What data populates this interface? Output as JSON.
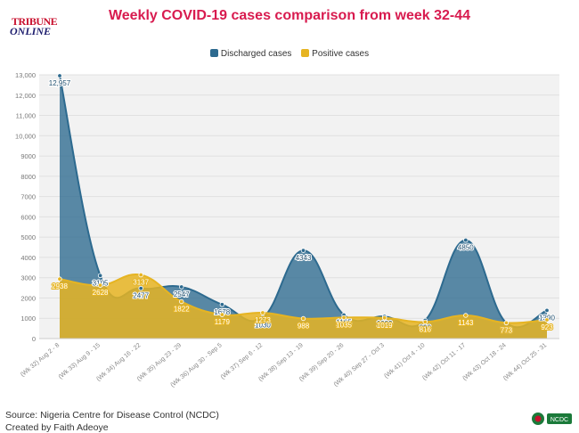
{
  "header": {
    "title": "Weekly COVID-19 cases comparison from week 32-44",
    "logo_text_top": "TRIBUNE",
    "logo_text_bottom": "ONLINE"
  },
  "footer": {
    "source": "Source: Nigeria Centre for Disease Control (NCDC)",
    "credit": "Created by Faith Adeoye",
    "badge": "NCDC"
  },
  "colors": {
    "discharged": "#2d6a8f",
    "positive": "#e6b422",
    "title": "#d81b4f"
  },
  "chart_data": {
    "type": "area",
    "title": "Weekly COVID-19 cases comparison from week 32-44",
    "xlabel": "",
    "ylabel": "",
    "ylim": [
      0,
      13000
    ],
    "yticks": [
      "0",
      "1000",
      "2000",
      "3000",
      "4000",
      "5000",
      "6000",
      "7000",
      "8000",
      "9000",
      "10,000",
      "11,000",
      "12,000",
      "13,000"
    ],
    "grid": true,
    "legend": "top-center",
    "categories": [
      "(Wk 32) Aug 2 - 8",
      "(Wk 33) Aug 9 - 15",
      "(Wk 34) Aug 16 - 22",
      "(Wk 35) Aug 23 - 29",
      "(Wk 36) Aug 30 - Sep 5",
      "(Wk 37) Sep 6 - 12",
      "(Wk 38) Sep 13 - 19",
      "(Wk 39) Sep 20 - 26",
      "(Wk 40) Sep 27 - Oct 3",
      "(Wk 41) Oct 4 - 10",
      "(Wk 42) Oct 11 - 17",
      "(Wk 43) Oct 18 - 24",
      "(Wk 44) Oct 25 - 31"
    ],
    "series": [
      {
        "name": "Discharged cases",
        "values": [
          12957,
          3105,
          2477,
          2547,
          1678,
          1030,
          4343,
          1165,
          1089,
          898,
          4850,
          773,
          1390
        ],
        "labels": [
          "12,957",
          "3105",
          "2477",
          "2547",
          "1678",
          "1030",
          "4343",
          "1165",
          "1089",
          "898",
          "4850",
          "773",
          "1390"
        ]
      },
      {
        "name": "Positive cases",
        "values": [
          2938,
          2628,
          3137,
          1822,
          1179,
          1273,
          988,
          1035,
          1019,
          816,
          1143,
          773,
          923
        ],
        "labels": [
          "2938",
          "2628",
          "3137",
          "1822",
          "1179",
          "1273",
          "988",
          "1035",
          "1019",
          "816",
          "1143",
          "773",
          "923"
        ]
      }
    ]
  }
}
